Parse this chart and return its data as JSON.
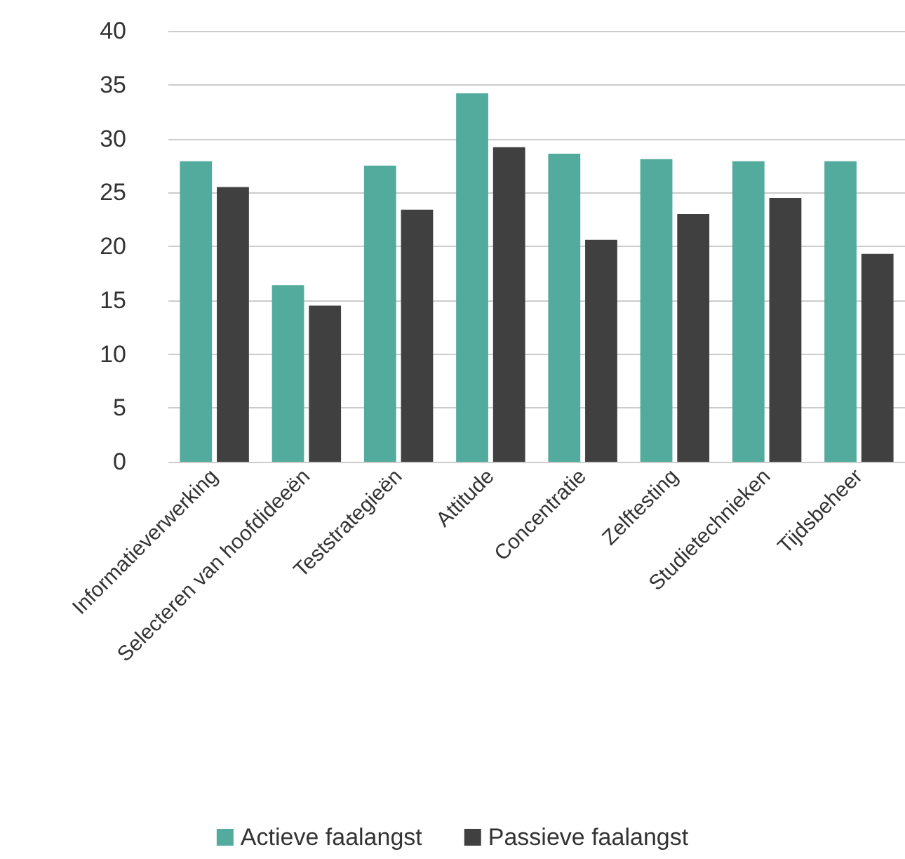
{
  "chart_data": {
    "type": "bar",
    "categories": [
      "Informatieverwerking",
      "Selecteren van hoofdideeën",
      "Teststrategieën",
      "Attitude",
      "Concentratie",
      "Zelftesting",
      "Studietechnieken",
      "Tijdsbeheer"
    ],
    "series": [
      {
        "name": "Actieve faalangst",
        "color": "#52ab9c",
        "values": [
          27.9,
          16.4,
          27.5,
          34.2,
          28.6,
          28.1,
          27.9,
          27.9
        ]
      },
      {
        "name": "Passieve faalangst",
        "color": "#404040",
        "values": [
          25.5,
          14.5,
          23.4,
          29.2,
          20.6,
          23.0,
          24.5,
          19.3
        ]
      }
    ],
    "ylim": [
      0,
      40
    ],
    "yticks": [
      0,
      5,
      10,
      15,
      20,
      25,
      30,
      35,
      40
    ],
    "grid": "y",
    "legend": "bottom"
  }
}
